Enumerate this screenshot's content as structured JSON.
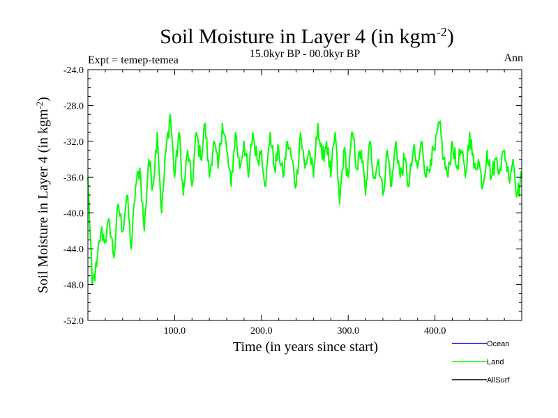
{
  "chart_data": {
    "type": "line",
    "title_main": "Soil Moisture in Layer 4 (in kgm",
    "title_sup": "-2",
    "title_close": ")",
    "subtitle": "15.0kyr BP - 00.0kyr BP",
    "experiment": "Expt = temep-temea",
    "season": "Ann",
    "xlabel": "Time (in years since start)",
    "ylabel_main": "Soil Moisture in Layer 4 (in kgm",
    "ylabel_sup": "-2",
    "ylabel_close": ")",
    "xlim": [
      0,
      500
    ],
    "ylim": [
      -52,
      -24
    ],
    "xticks": [
      100,
      200,
      300,
      400
    ],
    "xtick_labels": [
      "100.0",
      "200.0",
      "300.0",
      "400.0"
    ],
    "yticks": [
      -52,
      -48,
      -44,
      -40,
      -36,
      -32,
      -28,
      -24
    ],
    "ytick_labels": [
      "-52.0",
      "-48.0",
      "-44.0",
      "-40.0",
      "-36.0",
      "-32.0",
      "-28.0",
      "-24.0"
    ],
    "legend": [
      {
        "name": "Ocean",
        "color": "#0000ff"
      },
      {
        "name": "Land",
        "color": "#00ff00"
      },
      {
        "name": "AllSurf",
        "color": "#000000"
      }
    ],
    "series": [
      {
        "name": "Land",
        "color": "#00ff00",
        "x": [
          0,
          5,
          10,
          15,
          20,
          25,
          30,
          35,
          40,
          45,
          50,
          55,
          60,
          65,
          70,
          75,
          80,
          85,
          90,
          95,
          100,
          105,
          110,
          115,
          120,
          125,
          130,
          135,
          140,
          145,
          150,
          155,
          160,
          165,
          170,
          175,
          180,
          185,
          190,
          195,
          200,
          205,
          210,
          215,
          220,
          225,
          230,
          235,
          240,
          245,
          250,
          255,
          260,
          265,
          270,
          275,
          280,
          285,
          290,
          295,
          300,
          305,
          310,
          315,
          320,
          325,
          330,
          335,
          340,
          345,
          350,
          355,
          360,
          365,
          370,
          375,
          380,
          385,
          390,
          395,
          400,
          405,
          410,
          415,
          420,
          425,
          430,
          435,
          440,
          445,
          450,
          455,
          460,
          465,
          470,
          475,
          480,
          485,
          490,
          495,
          500
        ],
        "values": [
          -36,
          -48,
          -46,
          -42,
          -43,
          -41,
          -45,
          -39,
          -42,
          -38,
          -44,
          -37,
          -35,
          -42,
          -34,
          -37,
          -31,
          -40,
          -33,
          -29,
          -36,
          -31,
          -38,
          -33,
          -37,
          -31,
          -34,
          -30,
          -36,
          -32,
          -35,
          -30,
          -33,
          -37,
          -31,
          -35,
          -32,
          -36,
          -31,
          -34,
          -33,
          -37,
          -31,
          -35,
          -33,
          -36,
          -32,
          -34,
          -37,
          -31,
          -35,
          -33,
          -36,
          -30,
          -34,
          -32,
          -36,
          -31,
          -39,
          -33,
          -36,
          -31,
          -35,
          -33,
          -38,
          -32,
          -36,
          -34,
          -38,
          -33,
          -37,
          -32,
          -36,
          -34,
          -37,
          -33,
          -35,
          -32,
          -36,
          -34,
          -33,
          -30,
          -34,
          -36,
          -32,
          -35,
          -33,
          -36,
          -31,
          -35,
          -34,
          -37,
          -33,
          -36,
          -34,
          -35,
          -33,
          -36,
          -34,
          -38,
          -36
        ]
      }
    ]
  }
}
